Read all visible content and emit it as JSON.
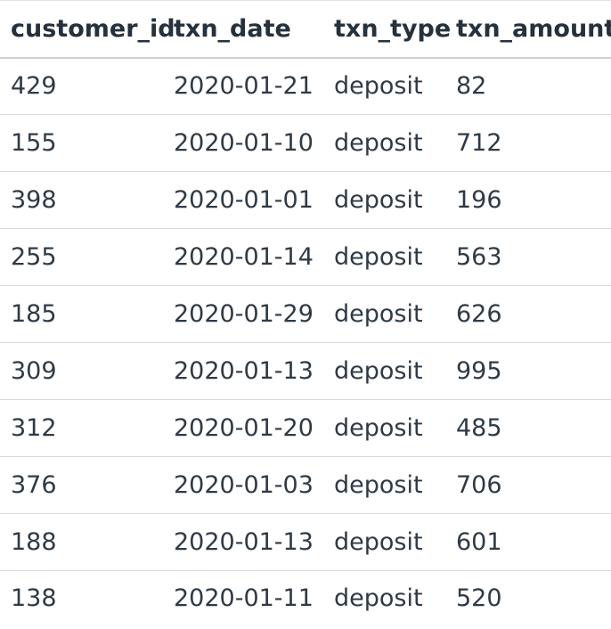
{
  "table": {
    "columns": [
      "customer_id",
      "txn_date",
      "txn_type",
      "txn_amount"
    ],
    "rows": [
      [
        "429",
        "2020-01-21",
        "deposit",
        "82"
      ],
      [
        "155",
        "2020-01-10",
        "deposit",
        "712"
      ],
      [
        "398",
        "2020-01-01",
        "deposit",
        "196"
      ],
      [
        "255",
        "2020-01-14",
        "deposit",
        "563"
      ],
      [
        "185",
        "2020-01-29",
        "deposit",
        "626"
      ],
      [
        "309",
        "2020-01-13",
        "deposit",
        "995"
      ],
      [
        "312",
        "2020-01-20",
        "deposit",
        "485"
      ],
      [
        "376",
        "2020-01-03",
        "deposit",
        "706"
      ],
      [
        "188",
        "2020-01-13",
        "deposit",
        "601"
      ],
      [
        "138",
        "2020-01-11",
        "deposit",
        "520"
      ]
    ]
  },
  "colors": {
    "text": "#2f3a45",
    "header_text": "#25313c",
    "row_divider": "#d9d9d9",
    "header_divider": "#cfcfcf",
    "background": "#ffffff"
  }
}
